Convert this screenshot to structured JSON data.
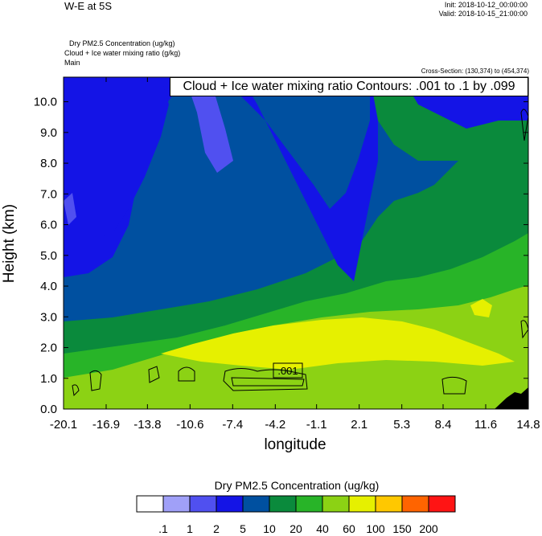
{
  "header": {
    "title": "W-E at 5S",
    "init": "Init: 2018-10-12_00:00:00",
    "valid": "Valid: 2018-10-15_21:00:00",
    "field_lines": [
      "Dry PM2.5 Concentration   (ug/kg)",
      "Cloud + Ice water mixing ratio   (g/kg)",
      "Main"
    ],
    "cross_section": "Cross-Section: (130,374) to (454,374)"
  },
  "chart_data": {
    "type": "heatmap",
    "title": "W-E at 5S",
    "xlabel": "longitude",
    "ylabel": "Height (km)",
    "xlim": [
      -20.1,
      14.8
    ],
    "ylim": [
      0.0,
      10.8
    ],
    "x_ticks": [
      "-20.1",
      "-16.9",
      "-13.8",
      "-10.6",
      "-7.4",
      "-4.2",
      "-1.1",
      "2.1",
      "5.3",
      "8.4",
      "11.6",
      "14.8"
    ],
    "y_ticks": [
      "0.0",
      "1.0",
      "2.0",
      "3.0",
      "4.0",
      "5.0",
      "6.0",
      "7.0",
      "8.0",
      "9.0",
      "10.0"
    ],
    "contour_annotation": "Cloud + Ice water mixing ratio Contours: .001 to .1 by .099",
    "contour_label": ".001",
    "colorbar": {
      "title": "Dry PM2.5 Concentration  (ug/kg)",
      "labels": [
        ".1",
        "1",
        "2",
        "5",
        "10",
        "20",
        "40",
        "60",
        "100",
        "150",
        "200"
      ],
      "colors": [
        "#ffffff",
        "#a0a0f8",
        "#5050f0",
        "#1414e6",
        "#0050a0",
        "#0a8a3c",
        "#28b428",
        "#8cd214",
        "#e6f000",
        "#ffc800",
        "#ff6400",
        "#ff1414"
      ]
    }
  }
}
